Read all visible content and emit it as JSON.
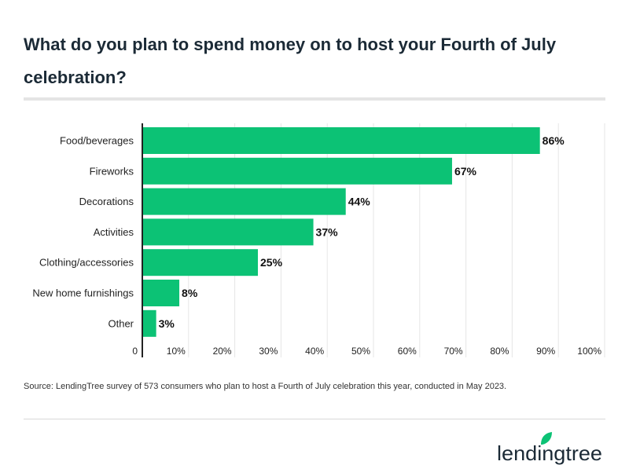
{
  "title": "What do you plan to spend money on to host your Fourth of July celebration?",
  "source": "Source: LendingTree survey of 573 consumers who plan to host a Fourth of July celebration this year, conducted in May 2023.",
  "logo_text": "lendingtree",
  "colors": {
    "bar": "#0cc275",
    "title": "#1b2a36",
    "grid": "#e6e6e6"
  },
  "chart_data": {
    "type": "bar",
    "orientation": "horizontal",
    "categories": [
      "Food/beverages",
      "Fireworks",
      "Decorations",
      "Activities",
      "Clothing/accessories",
      "New home furnishings",
      "Other"
    ],
    "values": [
      86,
      67,
      44,
      37,
      25,
      8,
      3
    ],
    "data_labels": [
      "86%",
      "67%",
      "44%",
      "37%",
      "25%",
      "8%",
      "3%"
    ],
    "xlim": [
      0,
      100
    ],
    "xticks": [
      0,
      10,
      20,
      30,
      40,
      50,
      60,
      70,
      80,
      90,
      100
    ],
    "xtick_labels": [
      "0",
      "10%",
      "20%",
      "30%",
      "40%",
      "50%",
      "60%",
      "70%",
      "80%",
      "90%",
      "100%"
    ],
    "grid": true
  }
}
